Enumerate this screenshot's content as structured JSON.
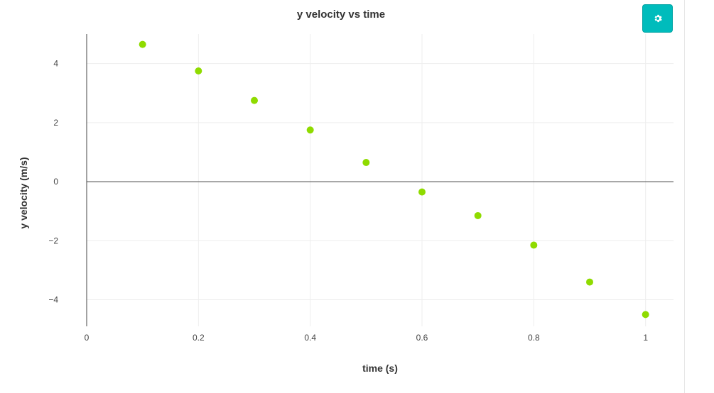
{
  "chart_data": {
    "type": "scatter",
    "title": "y velocity vs time",
    "xlabel": "time (s)",
    "ylabel": "y velocity (m/s)",
    "xlim": [
      0,
      1.05
    ],
    "ylim": [
      -4.9,
      5.0
    ],
    "grid": true,
    "legend": "none",
    "x_ticks": [
      0,
      0.2,
      0.4,
      0.6,
      0.8,
      1
    ],
    "x_tick_labels": [
      "0",
      "0.2",
      "0.4",
      "0.6",
      "0.8",
      "1"
    ],
    "y_ticks": [
      -4,
      -2,
      0,
      2,
      4
    ],
    "y_tick_labels": [
      "−4",
      "−2",
      "0",
      "2",
      "4"
    ],
    "marker_color": "#8fdb00",
    "x": [
      0.1,
      0.2,
      0.3,
      0.4,
      0.5,
      0.6,
      0.7,
      0.8,
      0.9,
      1.0
    ],
    "y": [
      4.65,
      3.75,
      2.75,
      1.75,
      0.65,
      -0.35,
      -1.15,
      -2.15,
      -3.4,
      -4.5
    ]
  },
  "toolbar": {
    "settings_icon": "gear-icon",
    "button_color": "#00bcbc"
  }
}
